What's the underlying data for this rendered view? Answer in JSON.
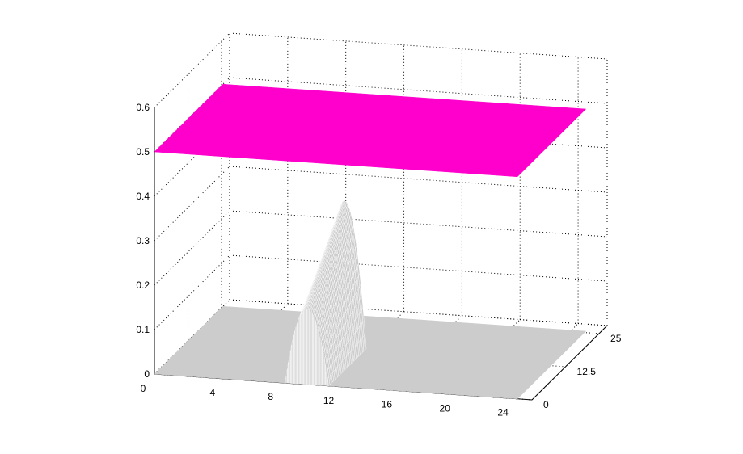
{
  "chart_data": {
    "type": "surface",
    "title": "",
    "xlabel": "",
    "ylabel": "",
    "zlabel": "",
    "x_ticks": [
      "0",
      "4",
      "8",
      "12",
      "16",
      "20",
      "24"
    ],
    "y_ticks": [
      "0",
      "12.5",
      "25"
    ],
    "z_ticks": [
      "0",
      "0.1",
      "0.2",
      "0.3",
      "0.4",
      "0.5",
      "0.6"
    ],
    "xlim": [
      0,
      26
    ],
    "ylim": [
      0,
      28
    ],
    "zlim": [
      0,
      0.6
    ],
    "grid": true,
    "view": "3d",
    "series": [
      {
        "surface_kind": "flat_plane",
        "z_value": 0.5,
        "color": "#ff00cc"
      },
      {
        "surface_kind": "ridge",
        "color": "#cccccc",
        "edge_color": "#ffffff",
        "base_value": 0,
        "ridge_x_range": [
          9,
          12
        ],
        "ridge_y_range": [
          0,
          14
        ],
        "peak_value_front": 0.17,
        "peak_value_back": 0.33
      }
    ]
  }
}
